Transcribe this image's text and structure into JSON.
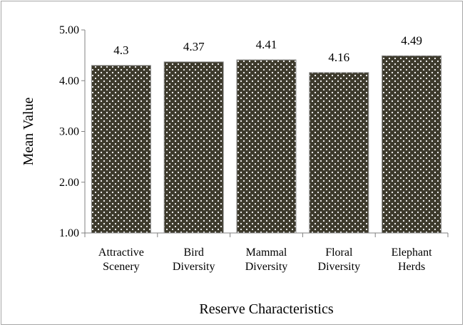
{
  "chart_data": {
    "type": "bar",
    "title": "",
    "categories": [
      [
        "Attractive",
        "Scenery"
      ],
      [
        "Bird",
        "Diversity"
      ],
      [
        "Mammal",
        "Diversity"
      ],
      [
        "Floral",
        "Diversity"
      ],
      [
        "Elephant",
        "Herds"
      ]
    ],
    "values": [
      4.3,
      4.37,
      4.41,
      4.16,
      4.49
    ],
    "data_labels": [
      "4.3",
      "4.37",
      "4.41",
      "4.16",
      "4.49"
    ],
    "xlabel": "Reserve Characteristics",
    "ylabel": "Mean Value",
    "ylim": [
      1.0,
      5.0
    ],
    "yticks": [
      "1.00",
      "2.00",
      "3.00",
      "4.00",
      "5.00"
    ],
    "grid": false,
    "legend": "none",
    "colors": {
      "bar_fill": "#3d3a2c",
      "bar_dots": "#ffffff",
      "axis": "#808080"
    }
  }
}
